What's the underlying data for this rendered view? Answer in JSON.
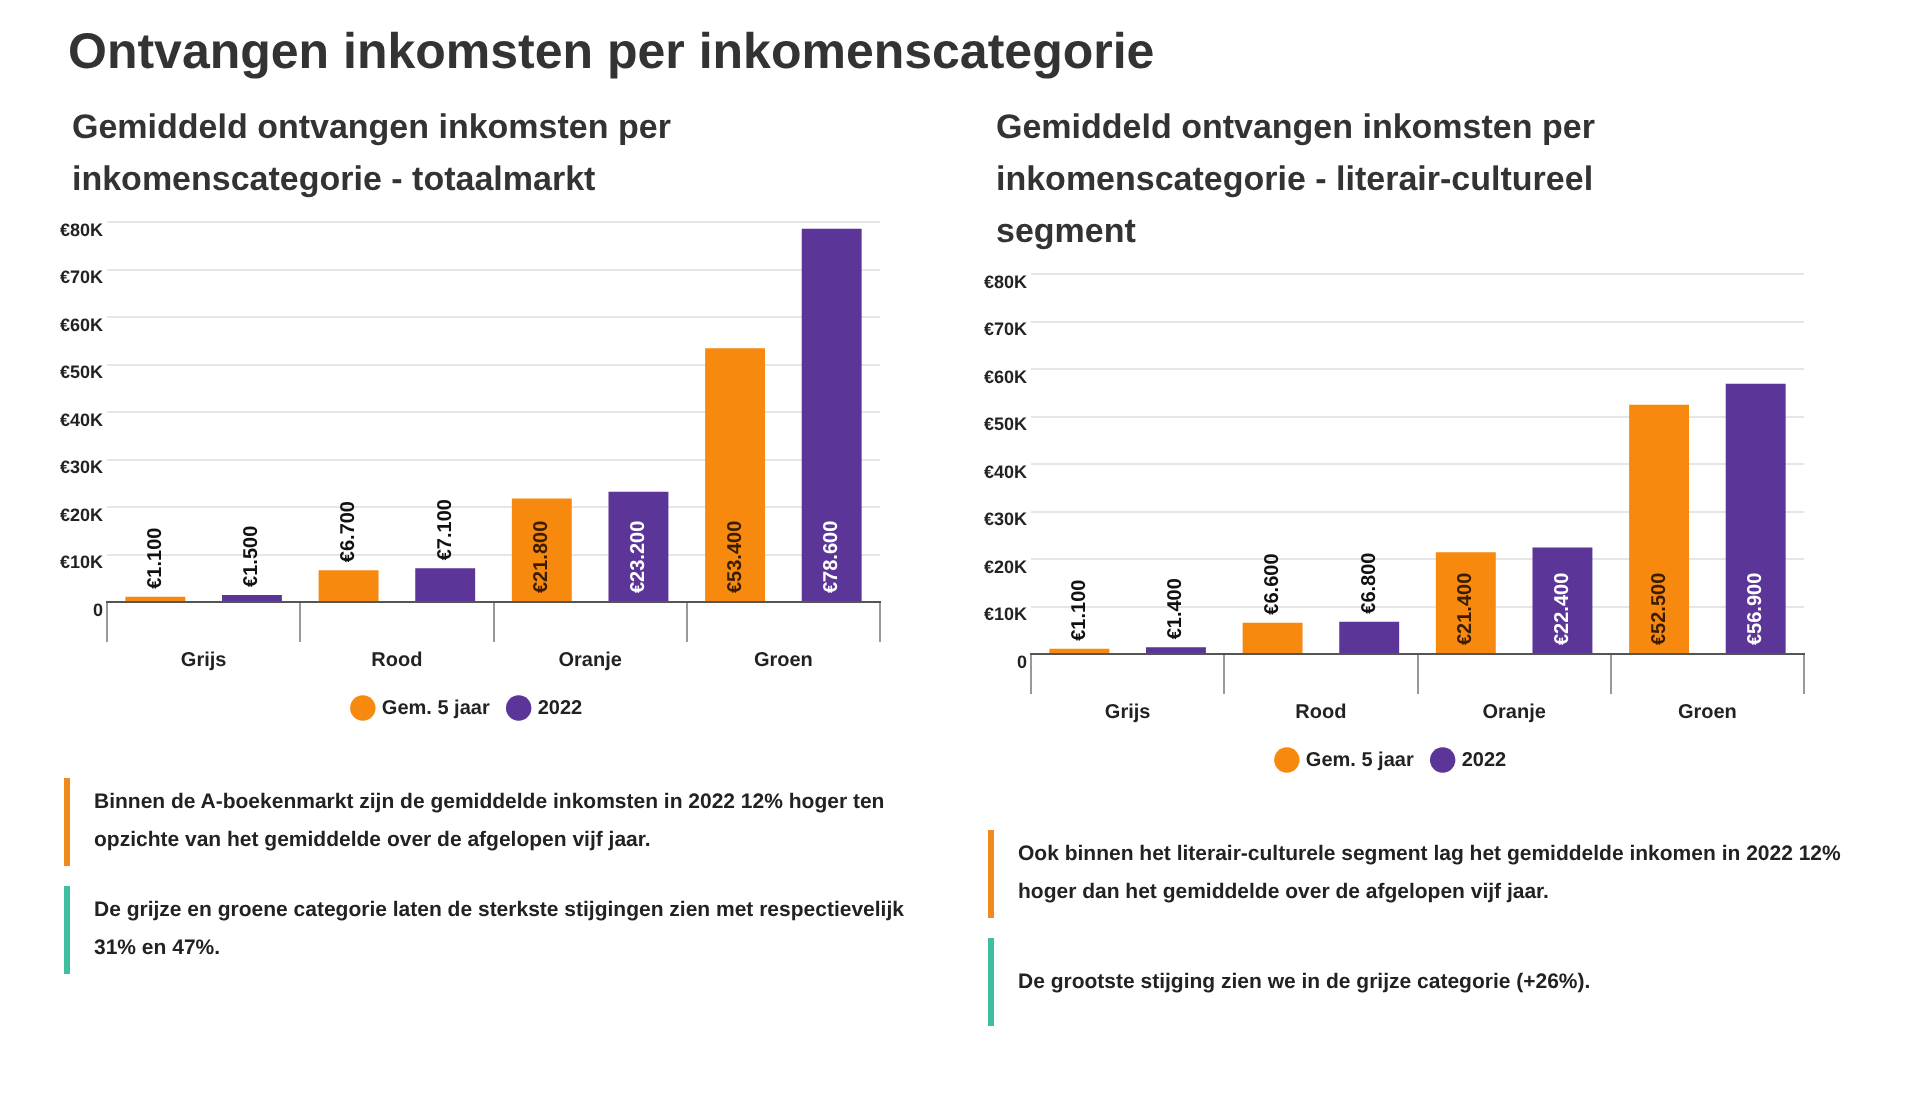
{
  "chart_data": [
    {
      "type": "other",
      "title": "Ontvangen inkomsten per inkomenscategorie"
    },
    {
      "type": "bar",
      "title": "Gemiddeld ontvangen inkomsten per inkomenscategorie - totaalmarkt",
      "categories": [
        "Grijs",
        "Rood",
        "Oranje",
        "Groen"
      ],
      "series": [
        {
          "name": "Gem. 5 jaar",
          "color": "#f7890f",
          "values": [
            1100,
            6700,
            21800,
            53400
          ],
          "value_labels": [
            "€1.100",
            "€6.700",
            "€21.800",
            "€53.400"
          ]
        },
        {
          "name": "2022",
          "color": "#5b3597",
          "values": [
            1500,
            7100,
            23200,
            78600
          ],
          "value_labels": [
            "€1.500",
            "€7.100",
            "€23.200",
            "€78.600"
          ]
        }
      ],
      "ylim": [
        0,
        80000
      ],
      "yticks": [
        0,
        {
          "value": 10000,
          "label": "€10K"
        },
        {
          "value": 20000,
          "label": "€20K"
        },
        {
          "value": 30000,
          "label": "€30K"
        },
        {
          "value": 40000,
          "label": "€40K"
        },
        {
          "value": 50000,
          "label": "€50K"
        },
        {
          "value": 60000,
          "label": "€60K"
        },
        {
          "value": 70000,
          "label": "€70K"
        },
        {
          "value": 80000,
          "label": "€80K"
        }
      ],
      "grid": "y",
      "legend": "bottom",
      "annotations": [
        "Binnen de A-boekenmarkt zijn de gemiddelde inkomsten in 2022 12% hoger ten opzichte van het gemiddelde over de afgelopen vijf jaar.",
        "De grijze en groene categorie laten de sterkste stijgingen zien met respectievelijk 31% en 47%."
      ]
    },
    {
      "type": "bar",
      "title": "Gemiddeld ontvangen inkomsten per inkomenscategorie - literair-cultureel segment",
      "categories": [
        "Grijs",
        "Rood",
        "Oranje",
        "Groen"
      ],
      "series": [
        {
          "name": "Gem. 5 jaar",
          "color": "#f7890f",
          "values": [
            1100,
            6600,
            21400,
            52500
          ],
          "value_labels": [
            "€1.100",
            "€6.600",
            "€21.400",
            "€52.500"
          ]
        },
        {
          "name": "2022",
          "color": "#5b3597",
          "values": [
            1400,
            6800,
            22400,
            56900
          ],
          "value_labels": [
            "€1.400",
            "€6.800",
            "€22.400",
            "€56.900"
          ]
        }
      ],
      "ylim": [
        0,
        80000
      ],
      "yticks": [
        0,
        {
          "value": 10000,
          "label": "€10K"
        },
        {
          "value": 20000,
          "label": "€20K"
        },
        {
          "value": 30000,
          "label": "€30K"
        },
        {
          "value": 40000,
          "label": "€40K"
        },
        {
          "value": 50000,
          "label": "€50K"
        },
        {
          "value": 60000,
          "label": "€60K"
        },
        {
          "value": 70000,
          "label": "€70K"
        },
        {
          "value": 80000,
          "label": "€80K"
        }
      ],
      "grid": "y",
      "legend": "bottom",
      "annotations": [
        "Ook binnen het literair-culturele segment lag het gemiddelde inkomen in 2022 12% hoger dan het gemiddelde over de afgelopen vijf jaar.",
        "De grootste stijging zien we in de grijze categorie (+26%)."
      ]
    }
  ]
}
